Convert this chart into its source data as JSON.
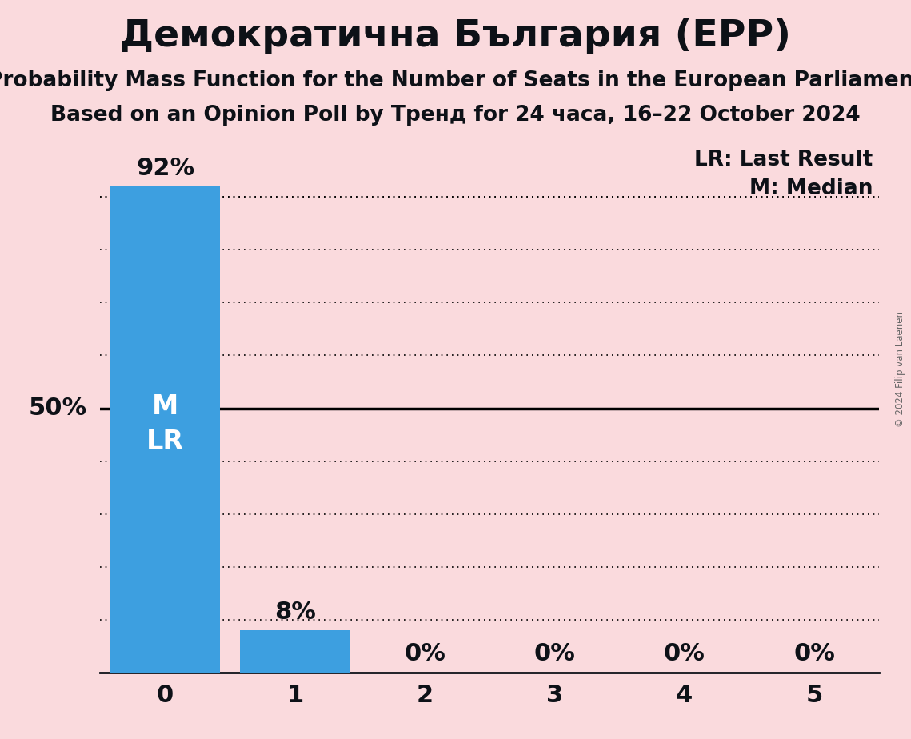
{
  "title": "Демократична България (EPP)",
  "subtitle1": "Probability Mass Function for the Number of Seats in the European Parliament",
  "subtitle2": "Based on an Opinion Poll by Тренд for 24 часа, 16–22 October 2024",
  "copyright": "© 2024 Filip van Laenen",
  "categories": [
    0,
    1,
    2,
    3,
    4,
    5
  ],
  "values": [
    0.92,
    0.08,
    0.0,
    0.0,
    0.0,
    0.0
  ],
  "bar_color": "#3d9fe0",
  "background_color": "#FADADD",
  "bar_labels": [
    "92%",
    "8%",
    "0%",
    "0%",
    "0%",
    "0%"
  ],
  "ylabel_50": "50%",
  "legend_lr": "LR: Last Result",
  "legend_m": "M: Median",
  "ylim": [
    0,
    1.0
  ],
  "title_fontsize": 34,
  "subtitle_fontsize": 19,
  "label_fontsize": 22,
  "tick_fontsize": 22,
  "bar_label_fontsize": 22,
  "legend_fontsize": 19,
  "text_color": "#0d1117"
}
